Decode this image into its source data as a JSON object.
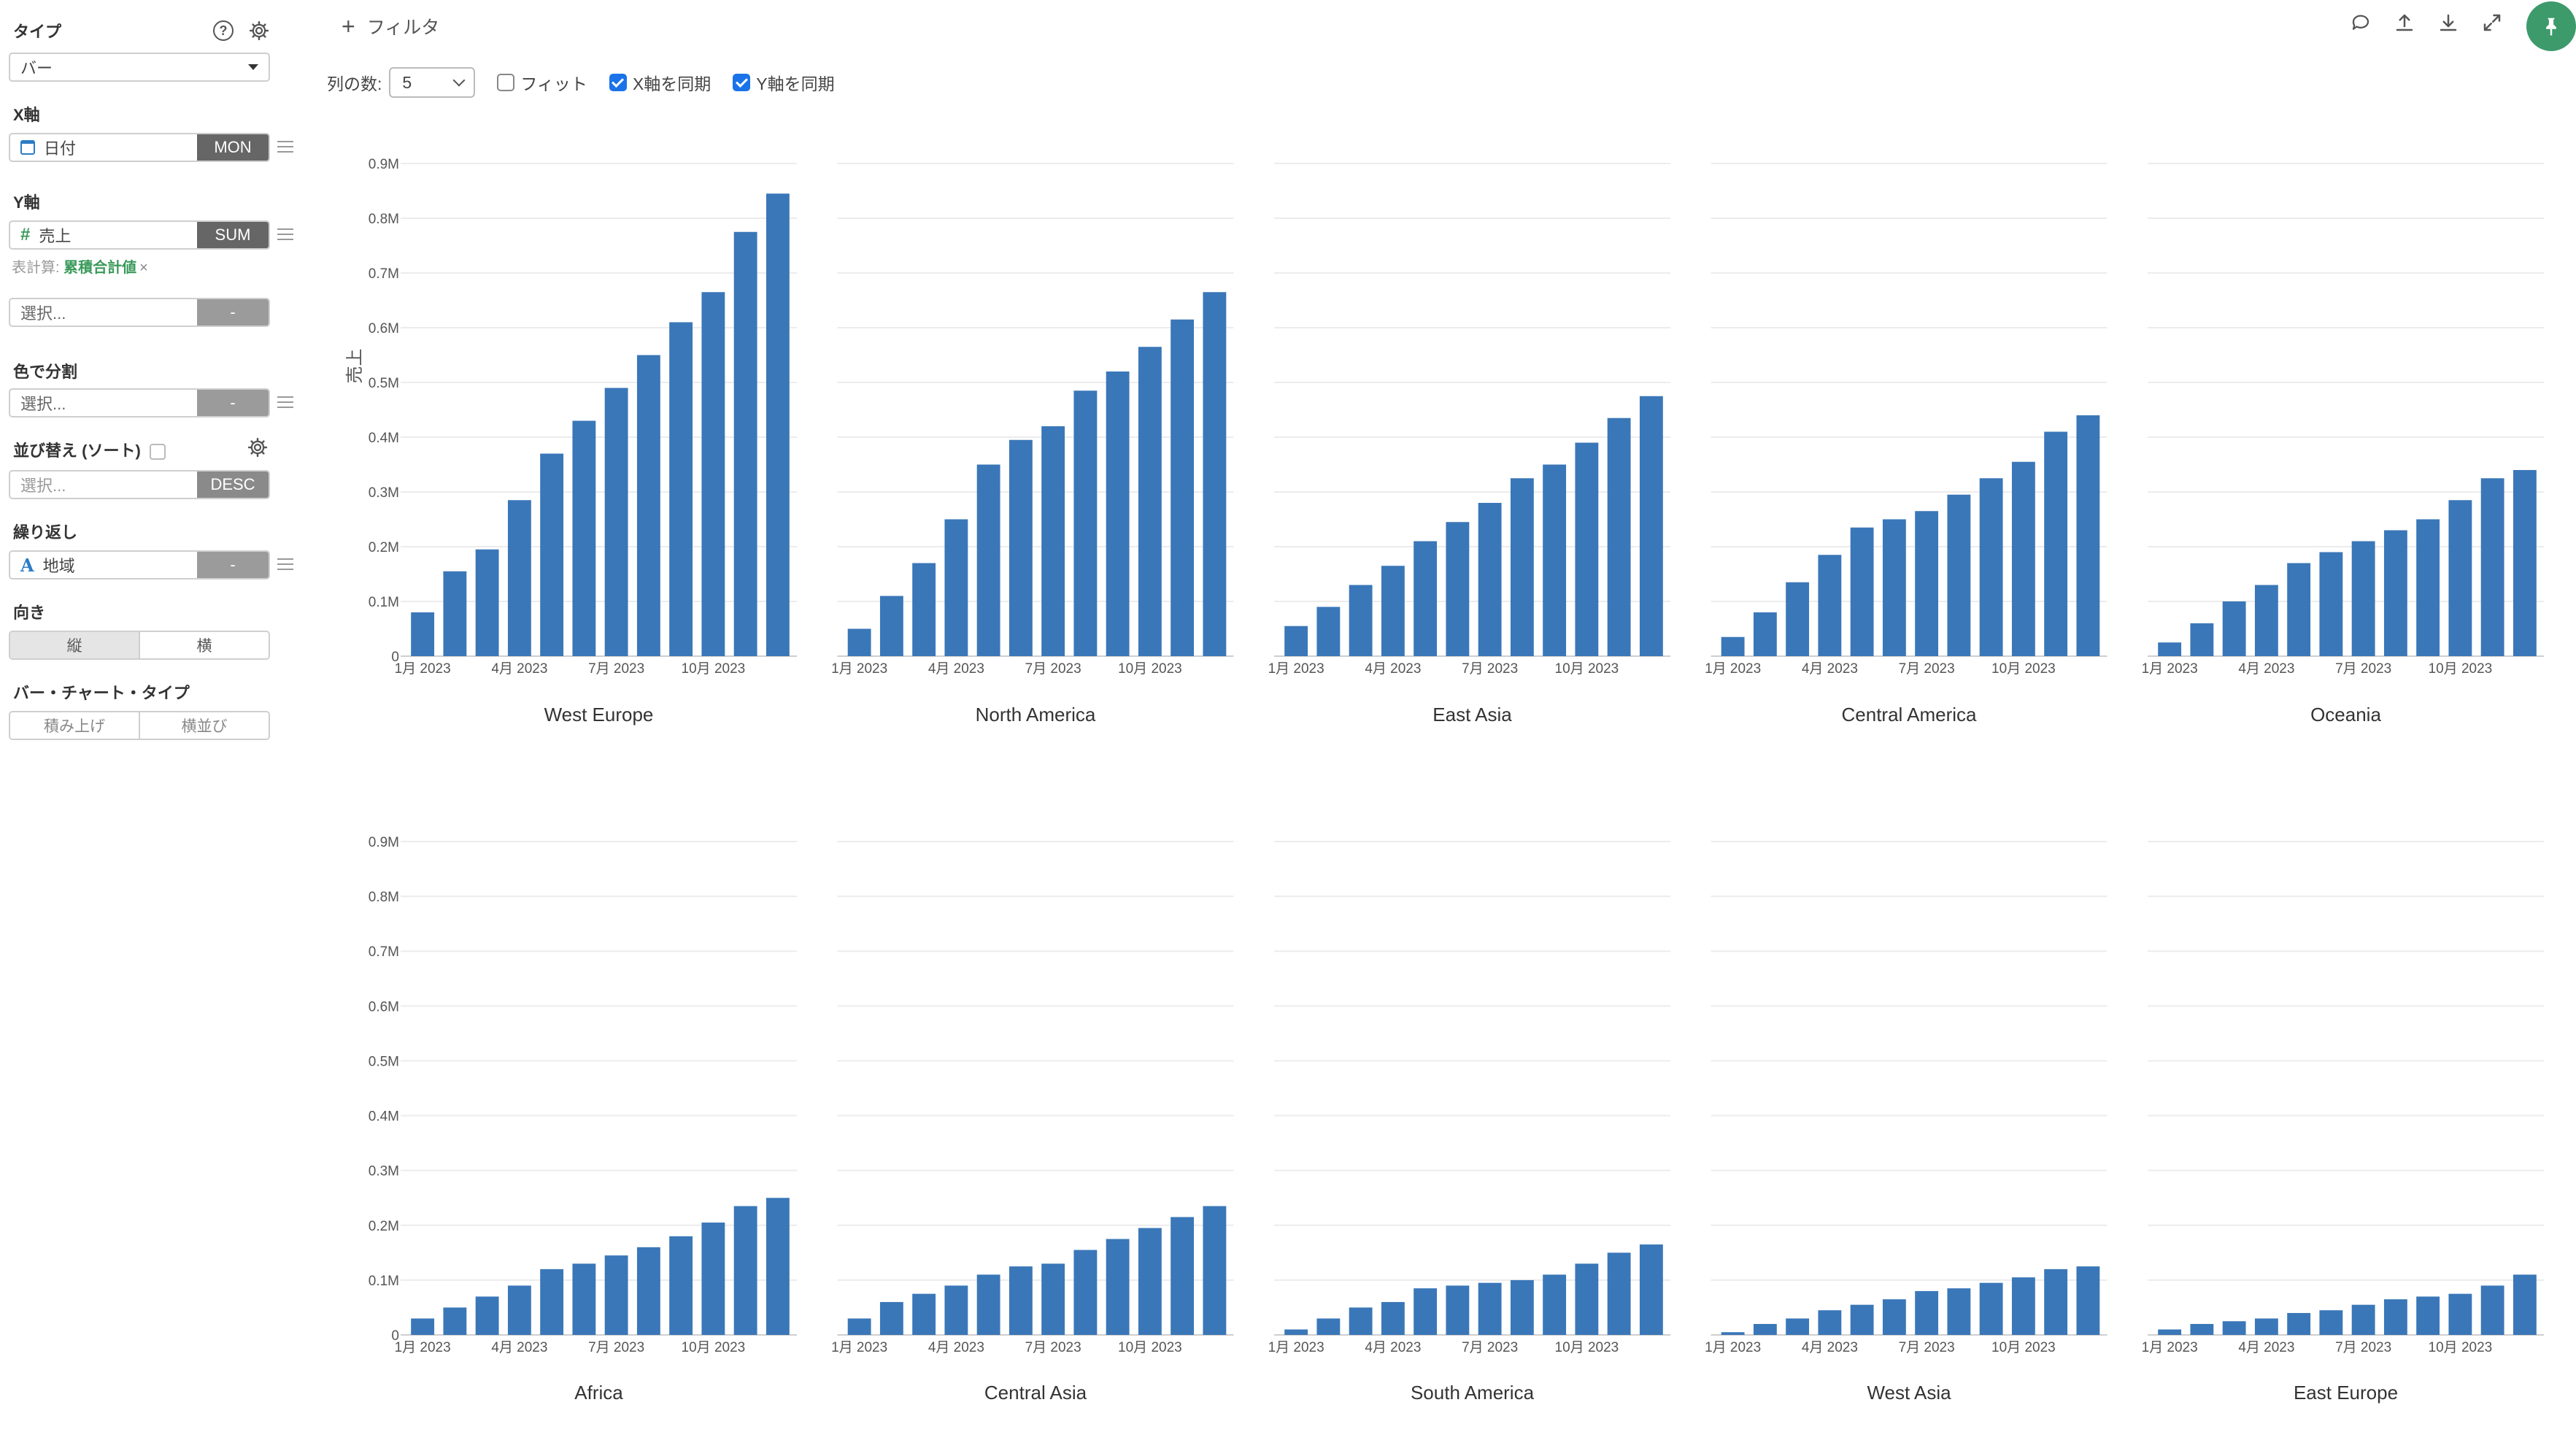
{
  "sidebar": {
    "type": {
      "title": "タイプ",
      "value": "バー"
    },
    "x_axis": {
      "title": "X軸",
      "field": "日付",
      "agg": "MON"
    },
    "y_axis": {
      "title": "Y軸",
      "field": "売上",
      "agg": "SUM",
      "calc_label": "表計算:",
      "calc_value": "累積合計値",
      "calc_remove": "×"
    },
    "y_axis2": {
      "placeholder": "選択...",
      "agg": "-"
    },
    "color_split": {
      "title": "色で分割",
      "placeholder": "選択...",
      "agg": "-"
    },
    "sort": {
      "title": "並び替え (ソート)",
      "placeholder": "選択...",
      "order": "DESC"
    },
    "repeat": {
      "title": "繰り返し",
      "field": "地域",
      "agg": "-"
    },
    "orientation": {
      "title": "向き",
      "vertical": "縦",
      "horizontal": "横"
    },
    "bar_type": {
      "title": "バー・チャート・タイプ",
      "stacked": "積み上げ",
      "side_by_side": "横並び"
    }
  },
  "toolbar": {
    "filter_label": "フィルタ",
    "columns_label": "列の数:",
    "columns_value": "5",
    "fit_label": "フィット",
    "sync_x_label": "X軸を同期",
    "sync_y_label": "Y軸を同期",
    "sync_x": true,
    "sync_y": true,
    "fit": false
  },
  "chart_data": {
    "type": "bar",
    "facet_by": "地域",
    "ylabel": "売上",
    "bar_color": "#3a77b8",
    "ylim": [
      0,
      0.9
    ],
    "y_ticks": [
      "0",
      "0.1M",
      "0.2M",
      "0.3M",
      "0.4M",
      "0.5M",
      "0.6M",
      "0.7M",
      "0.8M",
      "0.9M"
    ],
    "x_ticks": [
      "1月 2023",
      "4月 2023",
      "7月 2023",
      "10月 2023"
    ],
    "panels": [
      {
        "name": "West Europe",
        "values": [
          0.08,
          0.155,
          0.195,
          0.285,
          0.37,
          0.43,
          0.49,
          0.55,
          0.61,
          0.665,
          0.775,
          0.845
        ]
      },
      {
        "name": "North America",
        "values": [
          0.05,
          0.11,
          0.17,
          0.25,
          0.35,
          0.395,
          0.42,
          0.485,
          0.52,
          0.565,
          0.615,
          0.665
        ]
      },
      {
        "name": "East Asia",
        "values": [
          0.055,
          0.09,
          0.13,
          0.165,
          0.21,
          0.245,
          0.28,
          0.325,
          0.35,
          0.39,
          0.435,
          0.475
        ]
      },
      {
        "name": "Central America",
        "values": [
          0.035,
          0.08,
          0.135,
          0.185,
          0.235,
          0.25,
          0.265,
          0.295,
          0.325,
          0.355,
          0.41,
          0.44
        ]
      },
      {
        "name": "Oceania",
        "values": [
          0.025,
          0.06,
          0.1,
          0.13,
          0.17,
          0.19,
          0.21,
          0.23,
          0.25,
          0.285,
          0.325,
          0.34
        ]
      },
      {
        "name": "Africa",
        "values": [
          0.03,
          0.05,
          0.07,
          0.09,
          0.12,
          0.13,
          0.145,
          0.16,
          0.18,
          0.205,
          0.235,
          0.25
        ]
      },
      {
        "name": "Central Asia",
        "values": [
          0.03,
          0.06,
          0.075,
          0.09,
          0.11,
          0.125,
          0.13,
          0.155,
          0.175,
          0.195,
          0.215,
          0.235
        ]
      },
      {
        "name": "South America",
        "values": [
          0.01,
          0.03,
          0.05,
          0.06,
          0.085,
          0.09,
          0.095,
          0.1,
          0.11,
          0.13,
          0.15,
          0.165
        ]
      },
      {
        "name": "West Asia",
        "values": [
          0.005,
          0.02,
          0.03,
          0.045,
          0.055,
          0.065,
          0.08,
          0.085,
          0.095,
          0.105,
          0.12,
          0.125
        ]
      },
      {
        "name": "East Europe",
        "values": [
          0.01,
          0.02,
          0.025,
          0.03,
          0.04,
          0.045,
          0.055,
          0.065,
          0.07,
          0.075,
          0.09,
          0.11
        ]
      }
    ]
  }
}
